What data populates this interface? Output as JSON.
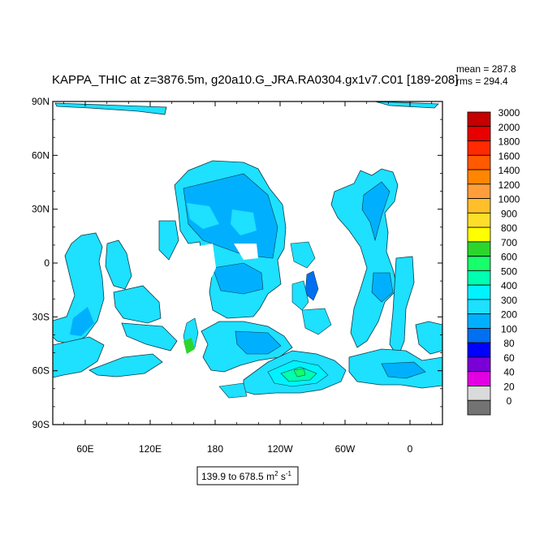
{
  "title": "KAPPA_THIC at z=3876.5m, g20a10.G_JRA.RA0304.gx1v7.C01 [189-208]",
  "stats": {
    "mean": "mean = 287.8",
    "rms": "rms = 294.4"
  },
  "range_box": {
    "text": "139.9 to 678.5 m",
    "unit_sup_2": "2",
    "unit_s": " s",
    "unit_sup_m1": "-1"
  },
  "axes": {
    "lat_labels": [
      "90N",
      "60N",
      "30N",
      "0",
      "30S",
      "60S",
      "90S"
    ],
    "lon_labels": [
      "60E",
      "120E",
      "180",
      "120W",
      "60W",
      "0"
    ]
  },
  "colorbar": {
    "labels": [
      "3000",
      "2000",
      "1800",
      "1600",
      "1400",
      "1200",
      "1000",
      "900",
      "800",
      "700",
      "600",
      "500",
      "400",
      "300",
      "200",
      "100",
      "80",
      "60",
      "40",
      "20",
      "0"
    ],
    "colors": [
      "#c40000",
      "#e80000",
      "#ff2a00",
      "#ff5a00",
      "#ff8600",
      "#ff9e3a",
      "#ffbf2a",
      "#ffde2a",
      "#ffff00",
      "#2cd52c",
      "#17ff6a",
      "#00ffb0",
      "#00f2ff",
      "#1ee0ff",
      "#00b0ff",
      "#0070f0",
      "#0000ff",
      "#7a00d6",
      "#e300e3",
      "#dadada",
      "#737373"
    ]
  },
  "chart_data": {
    "type": "heatmap",
    "title": "KAPPA_THIC at z=3876.5m, g20a10.G_JRA.RA0304.gx1v7.C01 [189-208]",
    "field": "KAPPA_THIC",
    "depth": "z=3876.5m",
    "case": "g20a10.G_JRA.RA0304.gx1v7.C01",
    "years": "[189-208]",
    "mean": 287.8,
    "rms": 294.4,
    "min": 139.9,
    "max": 678.5,
    "units": "m^2 s^-1",
    "lat_range": [
      -90,
      90
    ],
    "lon_range": [
      30,
      390
    ],
    "contour_levels": [
      0,
      20,
      40,
      60,
      80,
      100,
      200,
      300,
      400,
      500,
      600,
      700,
      800,
      900,
      1000,
      1200,
      1400,
      1600,
      1800,
      2000,
      3000
    ]
  }
}
